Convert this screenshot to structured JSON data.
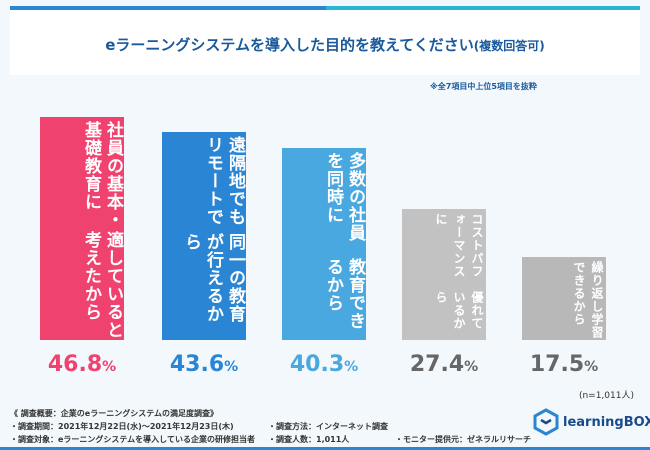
{
  "title": {
    "main": "eラーニングシステムを導入した目的を教えてください",
    "sub": "(複数回答可)"
  },
  "note": "※全7項目中上位5項目を抜粋",
  "sample": "(n=1,011人)",
  "colors": {
    "bar_colors": [
      "#f0426e",
      "#2a86d4",
      "#4aa8e0",
      "#c2c2c2",
      "#b8b8b8"
    ],
    "pct_colors": [
      "#f0426e",
      "#2a86d4",
      "#4aa8e0",
      "#666666",
      "#666666"
    ],
    "accent": "#1a5a9c"
  },
  "chart_data": {
    "type": "bar",
    "categories": [
      "社員の基本・基礎教育に適していると考えたから",
      "遠隔地でもリモートで同一の教育が行えるから",
      "多数の社員を同時に教育できるから",
      "コストパフォーマンスに優れているから",
      "繰り返し学習できるから"
    ],
    "label_lines": [
      [
        "社員の基本・基礎教育に",
        "適していると考えたから"
      ],
      [
        "遠隔地でもリモートで",
        "同一の教育が行えるから"
      ],
      [
        "多数の社員を同時に",
        "教育できるから"
      ],
      [
        "コストパフォーマンスに",
        "優れているから"
      ],
      [
        "繰り返し学習できるから"
      ]
    ],
    "values": [
      46.8,
      43.6,
      40.3,
      27.4,
      17.5
    ],
    "value_labels": [
      {
        "n": "46.8",
        "u": "%"
      },
      {
        "n": "43.6",
        "u": "%"
      },
      {
        "n": "40.3",
        "u": "%"
      },
      {
        "n": "27.4",
        "u": "%"
      },
      {
        "n": "17.5",
        "u": "%"
      }
    ],
    "unit": "%",
    "ylim": [
      0,
      50
    ]
  },
  "footer": {
    "heading": "《 調査概要：企業のeラーニングシステムの満足度調査》",
    "period": "・調査期間：2021年12月22日(水)～2021年12月23日(木)",
    "target": "・調査対象：eラーニングシステムを導入している企業の研修担当者",
    "method": "・調査方法：インターネット調査",
    "count": "・調査人数：1,011人",
    "provider": "・モニター提供元：ゼネラルリサーチ"
  },
  "logo": "learningBOX"
}
